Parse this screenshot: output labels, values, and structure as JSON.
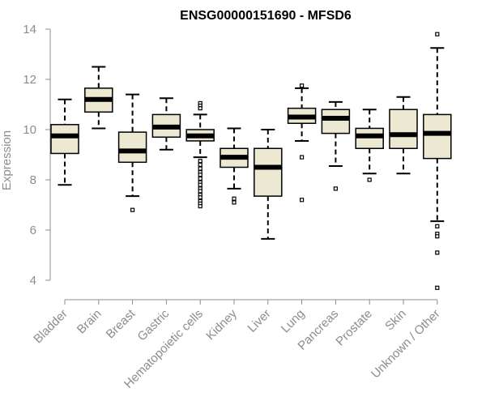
{
  "chart_data": {
    "type": "box",
    "title": "ENSG00000151690 - MFSD6",
    "xlabel": "",
    "ylabel": "Expression",
    "ylim": [
      3.6,
      14.1
    ],
    "yticks": [
      4,
      6,
      8,
      10,
      12,
      14
    ],
    "grid": false,
    "legend": "none",
    "box_fill": "#ede8d2",
    "box_stroke": "#000000",
    "median_color": "#000000",
    "axis_color": "#8c8c8c",
    "categories": [
      "Bladder",
      "Brain",
      "Breast",
      "Gastric",
      "Hematopoietic cells",
      "Kidney",
      "Liver",
      "Lung",
      "Pancreas",
      "Prostate",
      "Skin",
      "Unknown / Other"
    ],
    "boxes": [
      {
        "category": "Bladder",
        "whisker_low": 7.8,
        "q1": 9.05,
        "median": 9.75,
        "q3": 10.2,
        "whisker_high": 11.2,
        "outliers": []
      },
      {
        "category": "Brain",
        "whisker_low": 10.05,
        "q1": 10.7,
        "median": 11.2,
        "q3": 11.65,
        "whisker_high": 12.5,
        "outliers": []
      },
      {
        "category": "Breast",
        "whisker_low": 7.35,
        "q1": 8.7,
        "median": 9.15,
        "q3": 9.9,
        "whisker_high": 11.4,
        "outliers": [
          6.8
        ]
      },
      {
        "category": "Gastric",
        "whisker_low": 9.2,
        "q1": 9.7,
        "median": 10.1,
        "q3": 10.6,
        "whisker_high": 11.25,
        "outliers": []
      },
      {
        "category": "Hematopoietic cells",
        "whisker_low": 8.9,
        "q1": 9.55,
        "median": 9.75,
        "q3": 10.0,
        "whisker_high": 10.6,
        "outliers": [
          11.05,
          10.95,
          10.85,
          8.75,
          8.6,
          8.45,
          8.3,
          8.2,
          8.05,
          7.9,
          7.8,
          7.65,
          7.55,
          7.4,
          7.3,
          7.15,
          7.05,
          6.95
        ]
      },
      {
        "category": "Kidney",
        "whisker_low": 7.65,
        "q1": 8.5,
        "median": 8.9,
        "q3": 9.25,
        "whisker_high": 10.05,
        "outliers": [
          7.25,
          7.1
        ]
      },
      {
        "category": "Liver",
        "whisker_low": 5.65,
        "q1": 7.35,
        "median": 8.5,
        "q3": 9.25,
        "whisker_high": 10.0,
        "outliers": []
      },
      {
        "category": "Lung",
        "whisker_low": 9.55,
        "q1": 10.25,
        "median": 10.5,
        "q3": 10.85,
        "whisker_high": 11.65,
        "outliers": [
          11.75,
          8.9,
          7.2
        ]
      },
      {
        "category": "Pancreas",
        "whisker_low": 8.55,
        "q1": 9.85,
        "median": 10.45,
        "q3": 10.8,
        "whisker_high": 11.1,
        "outliers": [
          7.65
        ]
      },
      {
        "category": "Prostate",
        "whisker_low": 8.25,
        "q1": 9.25,
        "median": 9.75,
        "q3": 10.05,
        "whisker_high": 10.8,
        "outliers": [
          8.0
        ]
      },
      {
        "category": "Skin",
        "whisker_low": 8.25,
        "q1": 9.25,
        "median": 9.8,
        "q3": 10.8,
        "whisker_high": 11.3,
        "outliers": []
      },
      {
        "category": "Unknown / Other",
        "whisker_low": 6.35,
        "q1": 8.85,
        "median": 9.85,
        "q3": 10.6,
        "whisker_high": 13.25,
        "outliers": [
          13.8,
          6.15,
          5.85,
          5.75,
          5.1,
          3.7
        ]
      }
    ]
  }
}
